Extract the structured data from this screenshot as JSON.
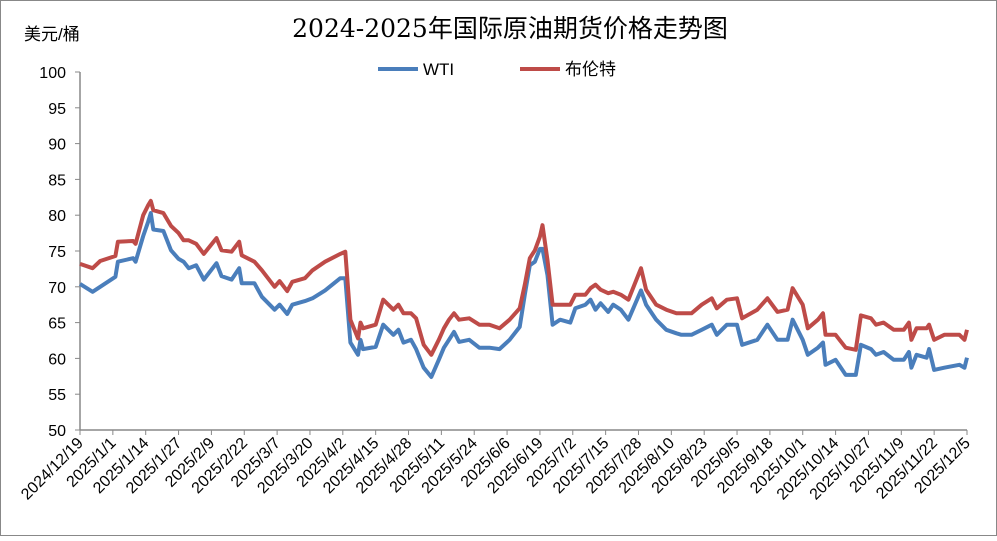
{
  "chart_data": {
    "type": "line",
    "title": "2024-2025年国际原油期货价格走势图",
    "ylabel": "美元/桶",
    "xlabel": "",
    "ylim": [
      50,
      100
    ],
    "yticks": [
      50,
      55,
      60,
      65,
      70,
      75,
      80,
      85,
      90,
      95,
      100
    ],
    "xlim": [
      "2024-12-19",
      "2025-12-05"
    ],
    "xtick_labels": [
      "2024/12/19",
      "2025/1/1",
      "2025/1/14",
      "2025/1/27",
      "2025/2/9",
      "2025/2/22",
      "2025/3/7",
      "2025/3/20",
      "2025/4/2",
      "2025/4/15",
      "2025/4/28",
      "2025/5/11",
      "2025/5/24",
      "2025/6/6",
      "2025/6/19",
      "2025/7/2",
      "2025/7/15",
      "2025/7/28",
      "2025/8/10",
      "2025/8/23",
      "2025/9/5",
      "2025/9/18",
      "2025/10/1",
      "2025/10/14",
      "2025/10/27",
      "2025/11/9",
      "2025/11/22",
      "2025/12/5"
    ],
    "grid": false,
    "legend": "top-center",
    "x": [
      "2024-12-19",
      "2024-12-24",
      "2024-12-27",
      "2025-01-02",
      "2025-01-03",
      "2025-01-09",
      "2025-01-10",
      "2025-01-13",
      "2025-01-15",
      "2025-01-16",
      "2025-01-17",
      "2025-01-21",
      "2025-01-24",
      "2025-01-27",
      "2025-01-29",
      "2025-01-31",
      "2025-02-03",
      "2025-02-06",
      "2025-02-11",
      "2025-02-13",
      "2025-02-17",
      "2025-02-20",
      "2025-02-21",
      "2025-02-26",
      "2025-03-01",
      "2025-03-06",
      "2025-03-08",
      "2025-03-11",
      "2025-03-13",
      "2025-03-18",
      "2025-03-21",
      "2025-03-26",
      "2025-04-01",
      "2025-04-03",
      "2025-04-05",
      "2025-04-08",
      "2025-04-09",
      "2025-04-10",
      "2025-04-15",
      "2025-04-18",
      "2025-04-22",
      "2025-04-24",
      "2025-04-26",
      "2025-04-29",
      "2025-05-01",
      "2025-05-04",
      "2025-05-07",
      "2025-05-10",
      "2025-05-12",
      "2025-05-14",
      "2025-05-16",
      "2025-05-18",
      "2025-05-22",
      "2025-05-26",
      "2025-05-30",
      "2025-06-03",
      "2025-06-07",
      "2025-06-11",
      "2025-06-13",
      "2025-06-15",
      "2025-06-17",
      "2025-06-19",
      "2025-06-20",
      "2025-06-22",
      "2025-06-24",
      "2025-06-27",
      "2025-07-01",
      "2025-07-03",
      "2025-07-07",
      "2025-07-09",
      "2025-07-11",
      "2025-07-13",
      "2025-07-16",
      "2025-07-18",
      "2025-07-21",
      "2025-07-24",
      "2025-07-29",
      "2025-07-31",
      "2025-08-04",
      "2025-08-08",
      "2025-08-12",
      "2025-08-14",
      "2025-08-18",
      "2025-08-22",
      "2025-08-26",
      "2025-08-28",
      "2025-09-01",
      "2025-09-05",
      "2025-09-07",
      "2025-09-13",
      "2025-09-17",
      "2025-09-21",
      "2025-09-25",
      "2025-09-27",
      "2025-10-01",
      "2025-10-03",
      "2025-10-07",
      "2025-10-09",
      "2025-10-10",
      "2025-10-14",
      "2025-10-18",
      "2025-10-22",
      "2025-10-24",
      "2025-10-28",
      "2025-10-30",
      "2025-11-02",
      "2025-11-06",
      "2025-11-10",
      "2025-11-12",
      "2025-11-13",
      "2025-11-15",
      "2025-11-19",
      "2025-11-20",
      "2025-11-22",
      "2025-11-26",
      "2025-12-02",
      "2025-12-04",
      "2025-12-05"
    ],
    "series": [
      {
        "name": "WTI",
        "color": "#4a7ebb",
        "values": [
          70.4,
          69.3,
          70,
          71.4,
          73.5,
          74,
          73.5,
          77.1,
          79.1,
          80.3,
          78,
          77.8,
          75.1,
          73.9,
          73.5,
          72.6,
          73,
          71,
          73.3,
          71.5,
          71,
          72.6,
          70.5,
          70.5,
          68.6,
          66.8,
          67.5,
          66.2,
          67.5,
          68,
          68.4,
          69.5,
          71.2,
          71.2,
          62.2,
          60.5,
          62.6,
          61.3,
          61.6,
          64.7,
          63.3,
          64,
          62.2,
          62.6,
          61.3,
          58.7,
          57.4,
          59.8,
          61.5,
          62.6,
          63.7,
          62.3,
          62.6,
          61.5,
          61.5,
          61.3,
          62.6,
          64.4,
          68.9,
          73,
          73.5,
          75.3,
          75.3,
          71.6,
          64.7,
          65.4,
          65,
          67,
          67.5,
          68.2,
          66.8,
          67.7,
          66.5,
          67.5,
          66.8,
          65.4,
          69.5,
          67.5,
          65.4,
          64,
          63.5,
          63.3,
          63.3,
          64,
          64.7,
          63.3,
          64.7,
          64.7,
          61.9,
          62.6,
          64.7,
          62.6,
          62.6,
          65.4,
          62.6,
          60.5,
          61.5,
          62.2,
          59.1,
          59.8,
          57.7,
          57.7,
          61.9,
          61.3,
          60.5,
          60.9,
          59.8,
          59.8,
          60.9,
          58.7,
          60.5,
          60.1,
          61.3,
          58.4,
          58.7,
          59.1,
          58.7,
          60.1
        ]
      },
      {
        "name": "布伦特",
        "color": "#be4b48",
        "values": [
          73.2,
          72.6,
          73.6,
          74.3,
          76.3,
          76.4,
          76,
          80,
          81.4,
          82,
          80.7,
          80.3,
          78.5,
          77.5,
          76.5,
          76.5,
          76,
          74.6,
          76.8,
          75.1,
          74.9,
          76.3,
          74.4,
          73.5,
          72.3,
          70,
          70.8,
          69.4,
          70.7,
          71.2,
          72.3,
          73.5,
          74.6,
          74.9,
          65.4,
          62.8,
          65,
          64.2,
          64.7,
          68.2,
          66.8,
          67.5,
          66.3,
          66.3,
          65.6,
          61.9,
          60.5,
          62.6,
          64.2,
          65.4,
          66.3,
          65.4,
          65.6,
          64.7,
          64.7,
          64.2,
          65.4,
          67,
          70.3,
          74,
          75.1,
          77,
          78.6,
          73.7,
          67.5,
          67.5,
          67.5,
          68.9,
          68.9,
          69.8,
          70.3,
          69.6,
          69.1,
          69.3,
          68.9,
          68.2,
          72.6,
          69.6,
          67.5,
          66.8,
          66.3,
          66.3,
          66.3,
          67.5,
          68.4,
          67,
          68.2,
          68.4,
          65.6,
          66.8,
          68.4,
          66.5,
          66.8,
          69.8,
          67.5,
          64.2,
          65.4,
          66.3,
          63.3,
          63.3,
          61.5,
          61.2,
          66,
          65.6,
          64.7,
          65,
          64,
          64,
          65,
          62.6,
          64.2,
          64.2,
          64.7,
          62.6,
          63.3,
          63.3,
          62.6,
          64
        ]
      }
    ]
  }
}
